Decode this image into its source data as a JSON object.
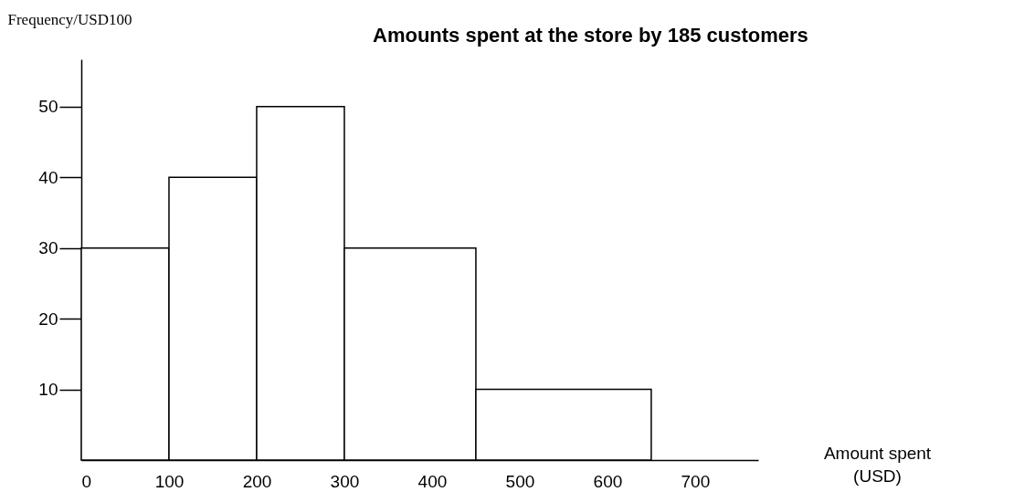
{
  "chart_data": {
    "type": "histogram",
    "title": "Amounts spent  at the store by 185 customers",
    "xlabel": "Amount spent (USD)",
    "ylabel": "Frequency/USD100",
    "bins": [
      0,
      100,
      200,
      300,
      450,
      650
    ],
    "values": [
      30,
      40,
      50,
      30,
      10
    ],
    "color": "#ffffff",
    "xlim": [
      0,
      772
    ],
    "xticks": [
      0,
      100,
      200,
      300,
      400,
      500,
      600,
      700
    ],
    "ylim": [
      0,
      56.7
    ],
    "yticks": [
      10,
      20,
      30,
      40,
      50
    ],
    "grid": false
  }
}
